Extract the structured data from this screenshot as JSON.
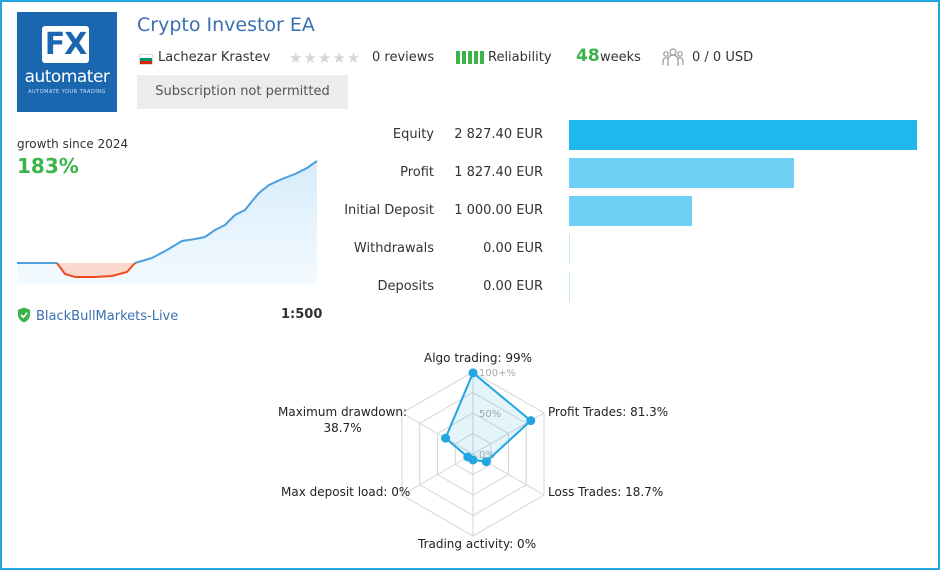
{
  "header": {
    "title": "Crypto Investor EA",
    "author": "Lachezar Krastev",
    "reviews": "0 reviews",
    "reliability_label": "Reliability",
    "weeks_value": "48",
    "weeks_unit": "weeks",
    "subscribers": "0 / 0 USD",
    "subscription_button": "Subscription not permitted",
    "logo": {
      "mark": "FX",
      "brand": "automater",
      "tagline": "AUTOMATE YOUR TRADING"
    },
    "flag_colors": [
      "#ffffff",
      "#00966e",
      "#d62612"
    ],
    "accent_color": "#3b6fb0",
    "success_color": "#3bb54a"
  },
  "growth": {
    "label": "growth since 2024",
    "value": "183%"
  },
  "account": {
    "broker": "BlackBullMarkets-Live",
    "leverage": "1:500"
  },
  "stats": [
    {
      "label": "Equity",
      "value": "2 827.40 EUR",
      "amount": 2827.4,
      "color": "#1fb8ee"
    },
    {
      "label": "Profit",
      "value": "1 827.40 EUR",
      "amount": 1827.4,
      "color": "#6fd0f5"
    },
    {
      "label": "Initial Deposit",
      "value": "1 000.00 EUR",
      "amount": 1000.0,
      "color": "#6fd0f5"
    },
    {
      "label": "Withdrawals",
      "value": "0.00 EUR",
      "amount": 0,
      "color": "#bfe8f8"
    },
    {
      "label": "Deposits",
      "value": "0.00 EUR",
      "amount": 0,
      "color": "#bfe8f8"
    }
  ],
  "radar": {
    "axes": [
      {
        "label": "Algo trading: 99%",
        "value": 99
      },
      {
        "label": "Profit Trades: 81.3%",
        "value": 81.3
      },
      {
        "label": "Loss Trades: 18.7%",
        "value": 18.7
      },
      {
        "label": "Trading activity: 0%",
        "value": 0
      },
      {
        "label": "Max deposit load: 0%",
        "value": 0
      },
      {
        "label": "Maximum drawdown:",
        "label2": "38.7%",
        "value": 38.7
      }
    ],
    "scale_labels": [
      "100+%",
      "50%",
      "0%"
    ],
    "color": "#21a6df"
  }
}
